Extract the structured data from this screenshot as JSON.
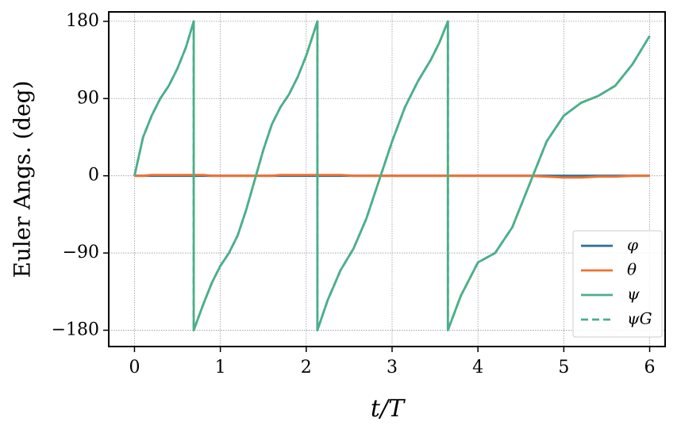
{
  "chart_data": {
    "type": "line",
    "ylabel": "Euler Angs. (deg)",
    "xlabel": "t/T",
    "x": [
      0,
      0.1,
      0.2,
      0.3,
      0.4,
      0.5,
      0.6,
      0.69,
      0.69,
      0.8,
      0.9,
      1.0,
      1.1,
      1.2,
      1.3,
      1.4,
      1.5,
      1.6,
      1.7,
      1.8,
      1.9,
      2.0,
      2.13,
      2.13,
      2.25,
      2.4,
      2.55,
      2.7,
      2.85,
      3.0,
      3.15,
      3.3,
      3.45,
      3.55,
      3.65,
      3.65,
      3.8,
      4.0,
      4.2,
      4.4,
      4.6,
      4.8,
      5.0,
      5.2,
      5.4,
      5.6,
      5.8,
      6.0
    ],
    "series": [
      {
        "name": "φ",
        "color": "#2a6f97",
        "dashed": false,
        "values": [
          0,
          0,
          0,
          0,
          0,
          0,
          0,
          0,
          0,
          0,
          0,
          0,
          0,
          0,
          0,
          0,
          0,
          0,
          0,
          0,
          0,
          0,
          0,
          0,
          0,
          0,
          0,
          0,
          0,
          0,
          0,
          0,
          0,
          0,
          0,
          0,
          0,
          0,
          0,
          0,
          0,
          0,
          0,
          0,
          0,
          0,
          0,
          0
        ]
      },
      {
        "name": "θ",
        "color": "#f07030",
        "dashed": false,
        "values": [
          0,
          0,
          1,
          1,
          1,
          1,
          1,
          1,
          1,
          1,
          0,
          0,
          0,
          0,
          0,
          0,
          0,
          0,
          1,
          1,
          1,
          1,
          1,
          1,
          1,
          1,
          0,
          0,
          0,
          0,
          0,
          0,
          0,
          0,
          0,
          0,
          0,
          0,
          0,
          0,
          0,
          -1,
          -2,
          -2,
          -1,
          -1,
          0,
          0
        ]
      },
      {
        "name": "ψ",
        "color": "#4caf8a",
        "dashed": false,
        "values": [
          0,
          45,
          70,
          90,
          105,
          125,
          150,
          180,
          -180,
          -150,
          -125,
          -105,
          -90,
          -70,
          -40,
          -5,
          30,
          60,
          80,
          95,
          115,
          140,
          180,
          -180,
          -145,
          -110,
          -85,
          -50,
          -5,
          40,
          80,
          110,
          135,
          155,
          180,
          -180,
          -140,
          -101,
          -90,
          -60,
          -10,
          40,
          70,
          85,
          93,
          105,
          130,
          163
        ]
      },
      {
        "name": "ψG",
        "color": "#4caf8a",
        "dashed": true,
        "values": [
          0,
          45,
          70,
          90,
          105,
          125,
          150,
          180,
          -180,
          -150,
          -125,
          -105,
          -90,
          -70,
          -40,
          -5,
          30,
          60,
          80,
          95,
          115,
          140,
          180,
          -180,
          -145,
          -110,
          -85,
          -50,
          -5,
          40,
          80,
          110,
          135,
          155,
          180,
          -180,
          -140,
          -101,
          -90,
          -60,
          -10,
          40,
          70,
          85,
          93,
          105,
          130,
          163
        ]
      }
    ],
    "xlim": [
      -0.3,
      6.18
    ],
    "ylim": [
      -199,
      191
    ],
    "xticks": [
      0,
      1,
      2,
      3,
      4,
      5,
      6
    ],
    "yticks": [
      {
        "value": -180,
        "label": "−180"
      },
      {
        "value": -90,
        "label": "−90"
      },
      0,
      90,
      180
    ],
    "grid": true,
    "legend": "lower right"
  }
}
